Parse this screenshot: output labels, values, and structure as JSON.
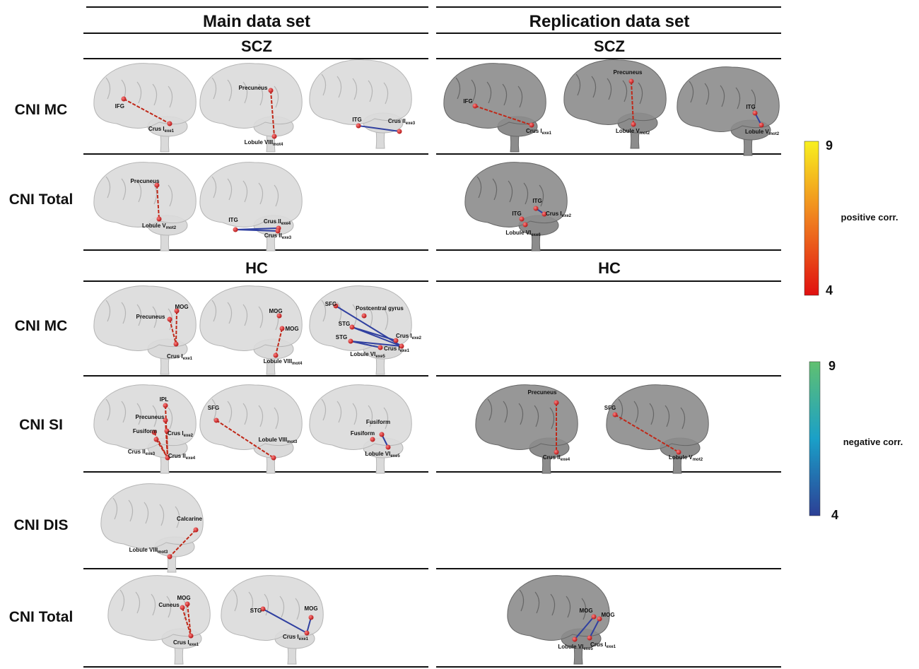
{
  "headers": {
    "main": "Main data set",
    "replication": "Replication data set"
  },
  "groups": [
    {
      "main_title": "SCZ",
      "replication_title": "SCZ",
      "rows": [
        {
          "label": "CNI MC",
          "main": [
            [
              {
                "name": "IFG"
              },
              {
                "name": "Crus I",
                "sub": "exe1"
              }
            ],
            [
              {
                "name": "Precuneus"
              },
              {
                "name": "Lobule VIII",
                "sub": "mot4"
              }
            ],
            [
              {
                "name": "ITG"
              },
              {
                "name": "Crus II",
                "sub": "exe3"
              }
            ]
          ],
          "replication": [
            [
              {
                "name": "IFG"
              },
              {
                "name": "Crus I",
                "sub": "exe1"
              }
            ],
            [
              {
                "name": "Precuneus"
              },
              {
                "name": "Lobule V",
                "sub": "mot2"
              }
            ],
            [
              {
                "name": "ITG"
              },
              {
                "name": "Lobule V",
                "sub": "mot2"
              }
            ]
          ]
        },
        {
          "label": "CNI Total",
          "main": [
            [
              {
                "name": "Precuneus"
              },
              {
                "name": "Lobule V",
                "sub": "mot2"
              }
            ],
            [
              {
                "name": "ITG"
              },
              {
                "name": "Crus II",
                "sub": "exe4"
              },
              {
                "name": "Crus II",
                "sub": "exe3"
              }
            ]
          ],
          "replication": [
            [
              {
                "name": "ITG"
              },
              {
                "name": "ITG"
              },
              {
                "name": "Crus I",
                "sub": "exe2"
              },
              {
                "name": "Lobule VI",
                "sub": "exe6"
              }
            ]
          ]
        }
      ]
    },
    {
      "main_title": "HC",
      "replication_title": "HC",
      "rows": [
        {
          "label": "CNI MC",
          "main": [
            [
              {
                "name": "Precuneus"
              },
              {
                "name": "MOG"
              },
              {
                "name": "Crus I",
                "sub": "exe1"
              }
            ],
            [
              {
                "name": "MOG"
              },
              {
                "name": "MOG"
              },
              {
                "name": "Lobule VIII",
                "sub": "mot4"
              }
            ],
            [
              {
                "name": "SFG"
              },
              {
                "name": "Postcentral gyrus"
              },
              {
                "name": "STG"
              },
              {
                "name": "STG"
              },
              {
                "name": "Crus I",
                "sub": "exe2"
              },
              {
                "name": "Crus I",
                "sub": "exe1"
              },
              {
                "name": "Lobule VI",
                "sub": "exe5"
              }
            ]
          ],
          "replication": []
        },
        {
          "label": "CNI SI",
          "main": [
            [
              {
                "name": "IPL"
              },
              {
                "name": "Precuneus"
              },
              {
                "name": "Crus I",
                "sub": "exe2"
              },
              {
                "name": "Fusiform"
              },
              {
                "name": "Crus II",
                "sub": "exe3"
              },
              {
                "name": "Crus II",
                "sub": "exe4"
              }
            ],
            [
              {
                "name": "SFG"
              },
              {
                "name": "Lobule VIII",
                "sub": "mot3"
              }
            ],
            [
              {
                "name": "Fusiform"
              },
              {
                "name": "Fusiform"
              },
              {
                "name": "Lobule VI",
                "sub": "exe5"
              }
            ]
          ],
          "replication": [
            [
              {
                "name": "Precuneus"
              },
              {
                "name": "Crus II",
                "sub": "exe4"
              }
            ],
            [
              {
                "name": "SFG"
              },
              {
                "name": "Lobule V",
                "sub": "mot2"
              }
            ]
          ]
        },
        {
          "label": "CNI DIS",
          "main": [
            [
              {
                "name": "Calcarine"
              },
              {
                "name": "Lobule VIII",
                "sub": "mot3"
              }
            ]
          ],
          "replication": []
        },
        {
          "label": "CNI Total",
          "main": [
            [
              {
                "name": "Cuneus"
              },
              {
                "name": "MOG"
              },
              {
                "name": "Crus I",
                "sub": "exe1"
              }
            ],
            [
              {
                "name": "STG"
              },
              {
                "name": "MOG"
              },
              {
                "name": "Crus I",
                "sub": "exe1"
              }
            ]
          ],
          "replication": [
            [
              {
                "name": "MOG"
              },
              {
                "name": "MOG"
              },
              {
                "name": "Lobule VI",
                "sub": "exe5"
              },
              {
                "name": "Crus I",
                "sub": "exe1"
              }
            ]
          ]
        }
      ]
    }
  ],
  "colorbars": [
    {
      "max": 9,
      "min": 4,
      "label": "positive corr."
    },
    {
      "max": 9,
      "min": 4,
      "label": "negative corr."
    }
  ]
}
